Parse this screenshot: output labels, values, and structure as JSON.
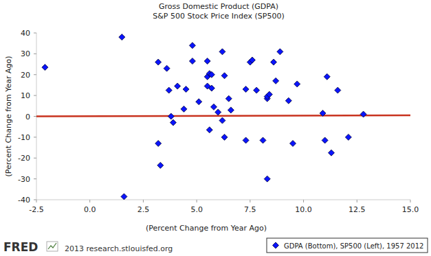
{
  "chart_data": {
    "type": "scatter",
    "title": "Gross Domestic Product (GDPA)",
    "subtitle": "S&P 500 Stock Price Index (SP500)",
    "x_label": "(Percent Change from Year Ago)",
    "y_label": "(Percent Change from Year Ago)",
    "annotations": [
      "FRED",
      "2013 research.stlouisfed.org"
    ],
    "xlim": [
      -2.5,
      15
    ],
    "ylim": [
      -40,
      40
    ],
    "xticks": [
      -2.5,
      {
        "value": 0,
        "label": "0.0"
      },
      2.5,
      {
        "value": 5,
        "label": "5.0"
      },
      7.5,
      {
        "value": 10,
        "label": "10.0"
      },
      12.5,
      {
        "value": 15,
        "label": "15.0"
      }
    ],
    "yticks": [
      -40,
      -30,
      -20,
      -10,
      0,
      10,
      20,
      30,
      40
    ],
    "grid": false,
    "legend": "bottom-right",
    "series": [
      {
        "name": "GDPA (Bottom), SP500 (Left), 1957 2012",
        "color": "#0a14ff",
        "marker": "diamond",
        "x": [
          -2.1,
          1.5,
          1.6,
          3.2,
          3.2,
          3.3,
          3.6,
          3.7,
          3.8,
          3.9,
          4.1,
          4.4,
          4.5,
          4.8,
          4.8,
          5.1,
          5.5,
          5.5,
          5.5,
          5.6,
          5.7,
          5.6,
          5.7,
          5.8,
          6.0,
          6.2,
          6.2,
          6.3,
          6.3,
          6.5,
          6.6,
          7.3,
          7.3,
          7.5,
          7.6,
          7.8,
          8.1,
          8.3,
          8.3,
          8.4,
          8.3,
          8.6,
          8.7,
          8.9,
          9.3,
          9.5,
          9.7,
          10.9,
          11.0,
          11.1,
          11.3,
          11.6,
          12.1,
          12.8
        ],
        "values": [
          23.5,
          38,
          -38.5,
          26,
          -13,
          -23.5,
          23,
          12.5,
          0,
          -3,
          14.5,
          3.5,
          13,
          34,
          26.5,
          7,
          26.5,
          19,
          14.5,
          20.5,
          20,
          -6.5,
          13.5,
          4.5,
          2,
          31,
          -2,
          19.5,
          -10,
          8.5,
          3,
          -11.5,
          13,
          26,
          27,
          12.5,
          -11.5,
          8.5,
          9.5,
          10.5,
          -30,
          26,
          17,
          31,
          7.5,
          -13,
          15.5,
          1.5,
          -11.5,
          19,
          -17.5,
          12.5,
          -10,
          1
        ]
      },
      {
        "type": "line",
        "color": "#c8321e",
        "x": [
          -2.5,
          15
        ],
        "values": [
          0,
          0.5
        ]
      }
    ]
  }
}
